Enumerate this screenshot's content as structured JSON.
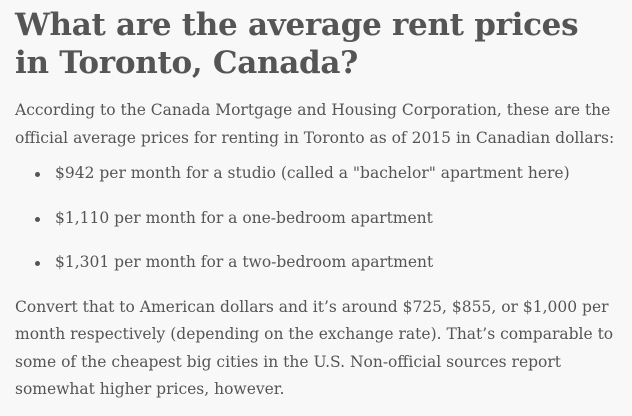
{
  "article": {
    "title": "What are the average rent prices in Toronto, Canada?",
    "intro": "According to the Canada Mortgage and Housing Corporation, these are the official average prices for renting in Toronto as of 2015 in Canadian dollars:",
    "bullets": [
      "$942 per month for a studio (called a \"bachelor\" apartment here)",
      "$1,110 per month for a one-bedroom apartment",
      "$1,301 per month for a two-bedroom apartment"
    ],
    "outro": "Convert that to American dollars and it’s around $725, $855, or $1,000 per month respectively (depending on the exchange rate). That’s comparable to some of the cheapest big cities in the U.S. Non-official sources report somewhat higher prices, however."
  }
}
